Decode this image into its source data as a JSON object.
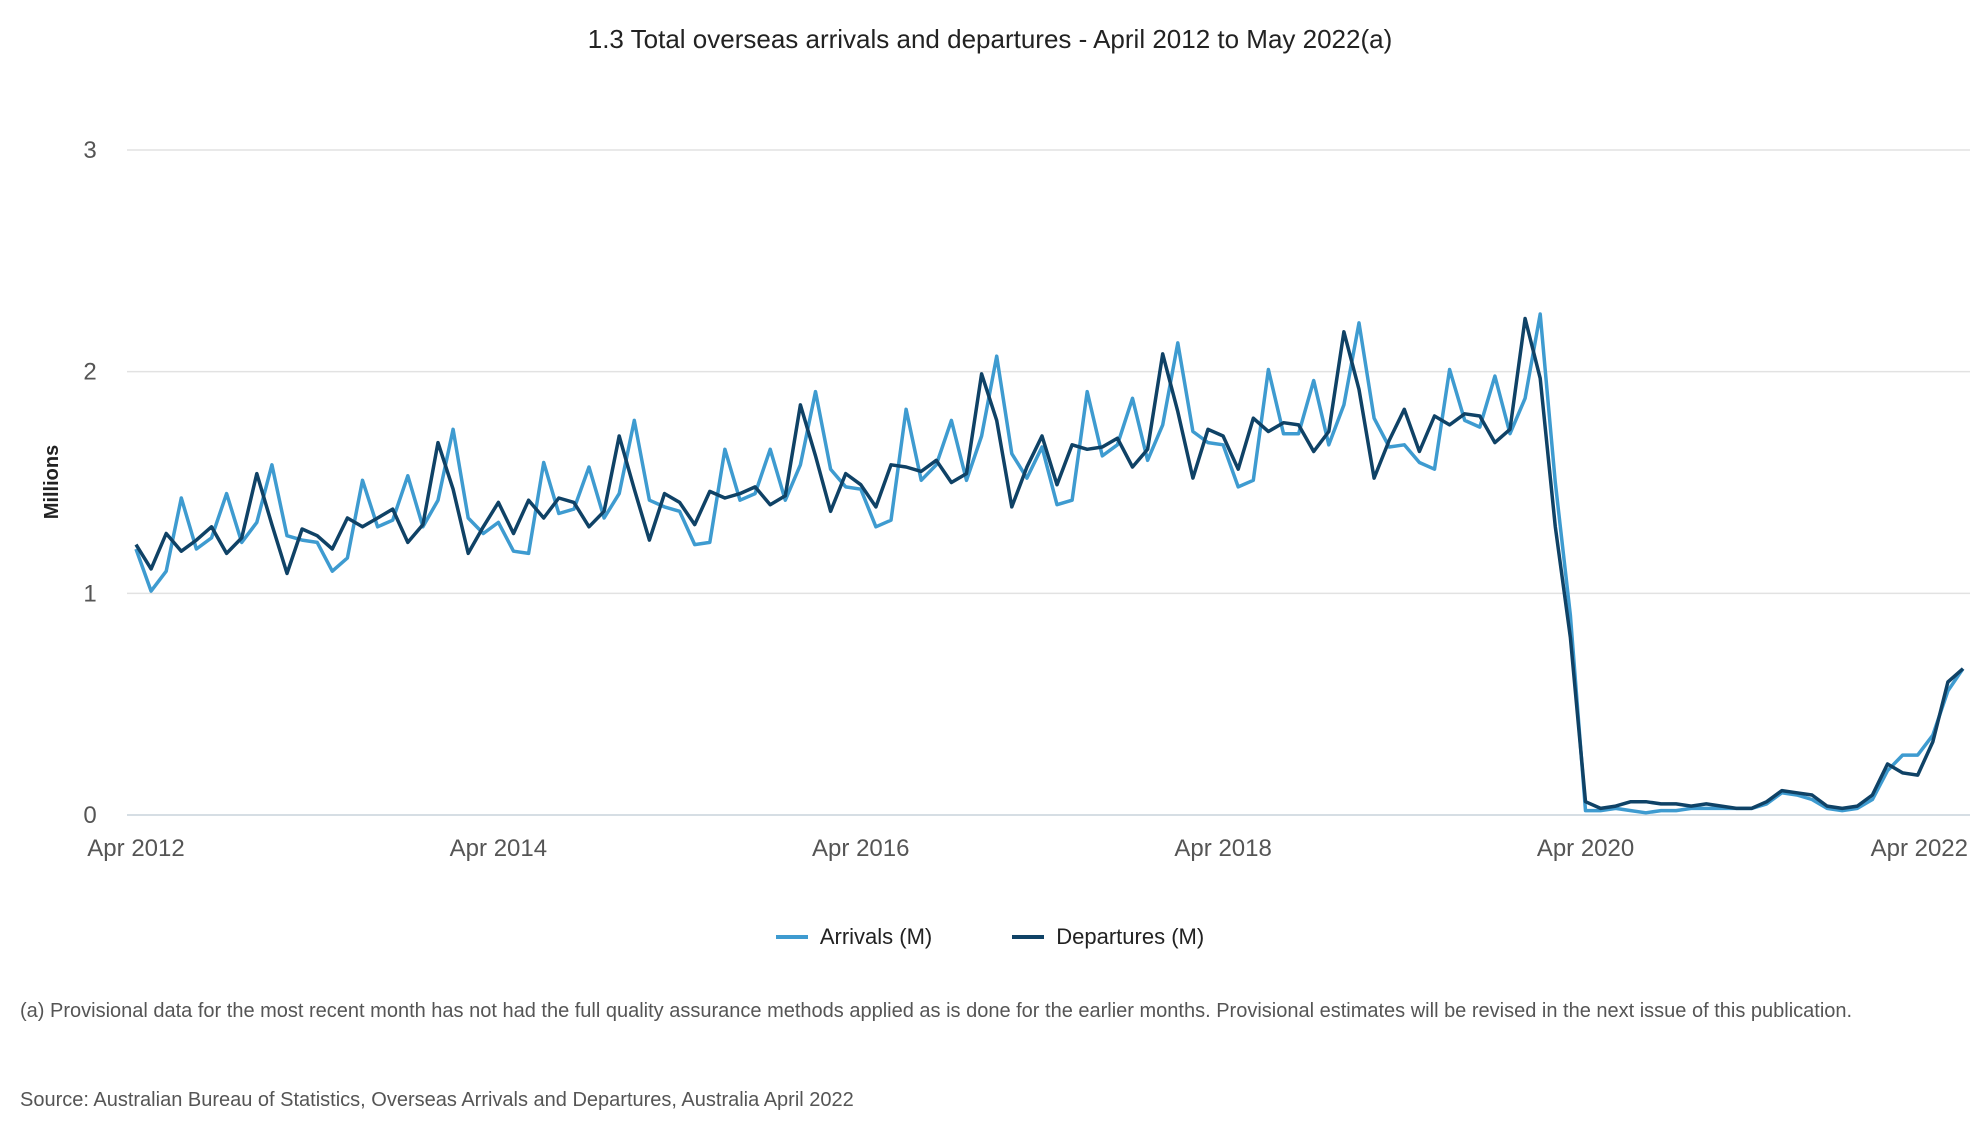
{
  "chart_data": {
    "type": "line",
    "title": "1.3 Total overseas arrivals and departures - April 2012 to May 2022(a)",
    "ylabel": "Millions",
    "xlabel": "",
    "ylim": [
      0,
      3
    ],
    "yticks": [
      "0",
      "1",
      "2",
      "3"
    ],
    "ytick_values": [
      0,
      1,
      2,
      3
    ],
    "xticks": [
      "Apr 2012",
      "Apr 2014",
      "Apr 2016",
      "Apr 2018",
      "Apr 2020",
      "Apr 2022"
    ],
    "xtick_indices": [
      0,
      24,
      48,
      72,
      96,
      120
    ],
    "x_start": "Apr 2012",
    "x_end": "May 2022",
    "grid": true,
    "legend_position": "bottom",
    "series": [
      {
        "name": "Arrivals (M)",
        "color": "#3e9bd0",
        "values": [
          1.2,
          1.01,
          1.1,
          1.43,
          1.2,
          1.25,
          1.45,
          1.23,
          1.32,
          1.58,
          1.26,
          1.24,
          1.23,
          1.1,
          1.16,
          1.51,
          1.3,
          1.33,
          1.53,
          1.3,
          1.42,
          1.74,
          1.34,
          1.27,
          1.32,
          1.19,
          1.18,
          1.59,
          1.36,
          1.38,
          1.57,
          1.34,
          1.45,
          1.78,
          1.42,
          1.39,
          1.37,
          1.22,
          1.23,
          1.65,
          1.42,
          1.45,
          1.65,
          1.42,
          1.58,
          1.91,
          1.56,
          1.48,
          1.47,
          1.3,
          1.33,
          1.83,
          1.51,
          1.58,
          1.78,
          1.51,
          1.71,
          2.07,
          1.63,
          1.52,
          1.66,
          1.4,
          1.42,
          1.91,
          1.62,
          1.67,
          1.88,
          1.6,
          1.76,
          2.13,
          1.73,
          1.68,
          1.67,
          1.48,
          1.51,
          2.01,
          1.72,
          1.72,
          1.96,
          1.67,
          1.85,
          2.22,
          1.79,
          1.66,
          1.67,
          1.59,
          1.56,
          2.01,
          1.78,
          1.75,
          1.98,
          1.72,
          1.88,
          2.26,
          1.5,
          0.9,
          0.02,
          0.02,
          0.03,
          0.02,
          0.01,
          0.02,
          0.02,
          0.03,
          0.03,
          0.03,
          0.03,
          0.03,
          0.05,
          0.1,
          0.09,
          0.07,
          0.03,
          0.02,
          0.03,
          0.07,
          0.2,
          0.27,
          0.27,
          0.36,
          0.56,
          0.66
        ]
      },
      {
        "name": "Departures (M)",
        "color": "#0f4266",
        "values": [
          1.22,
          1.11,
          1.27,
          1.19,
          1.24,
          1.3,
          1.18,
          1.25,
          1.54,
          1.31,
          1.09,
          1.29,
          1.26,
          1.2,
          1.34,
          1.3,
          1.34,
          1.38,
          1.23,
          1.31,
          1.68,
          1.47,
          1.18,
          1.3,
          1.41,
          1.27,
          1.42,
          1.34,
          1.43,
          1.41,
          1.3,
          1.37,
          1.71,
          1.47,
          1.24,
          1.45,
          1.41,
          1.31,
          1.46,
          1.43,
          1.45,
          1.48,
          1.4,
          1.44,
          1.85,
          1.62,
          1.37,
          1.54,
          1.49,
          1.39,
          1.58,
          1.57,
          1.55,
          1.6,
          1.5,
          1.54,
          1.99,
          1.78,
          1.39,
          1.57,
          1.71,
          1.49,
          1.67,
          1.65,
          1.66,
          1.7,
          1.57,
          1.65,
          2.08,
          1.82,
          1.52,
          1.74,
          1.71,
          1.56,
          1.79,
          1.73,
          1.77,
          1.76,
          1.64,
          1.73,
          2.18,
          1.92,
          1.52,
          1.69,
          1.83,
          1.64,
          1.8,
          1.76,
          1.81,
          1.8,
          1.68,
          1.74,
          2.24,
          1.97,
          1.3,
          0.8,
          0.06,
          0.03,
          0.04,
          0.06,
          0.06,
          0.05,
          0.05,
          0.04,
          0.05,
          0.04,
          0.03,
          0.03,
          0.06,
          0.11,
          0.1,
          0.09,
          0.04,
          0.03,
          0.04,
          0.09,
          0.23,
          0.19,
          0.18,
          0.33,
          0.6,
          0.66
        ]
      }
    ]
  },
  "footnote": "(a) Provisional data for the most recent month has not had the full quality assurance methods applied as is done for the earlier months. Provisional estimates will be revised in the next issue of this publication.",
  "source": "Source: Australian Bureau of Statistics, Overseas Arrivals and Departures, Australia April 2022"
}
